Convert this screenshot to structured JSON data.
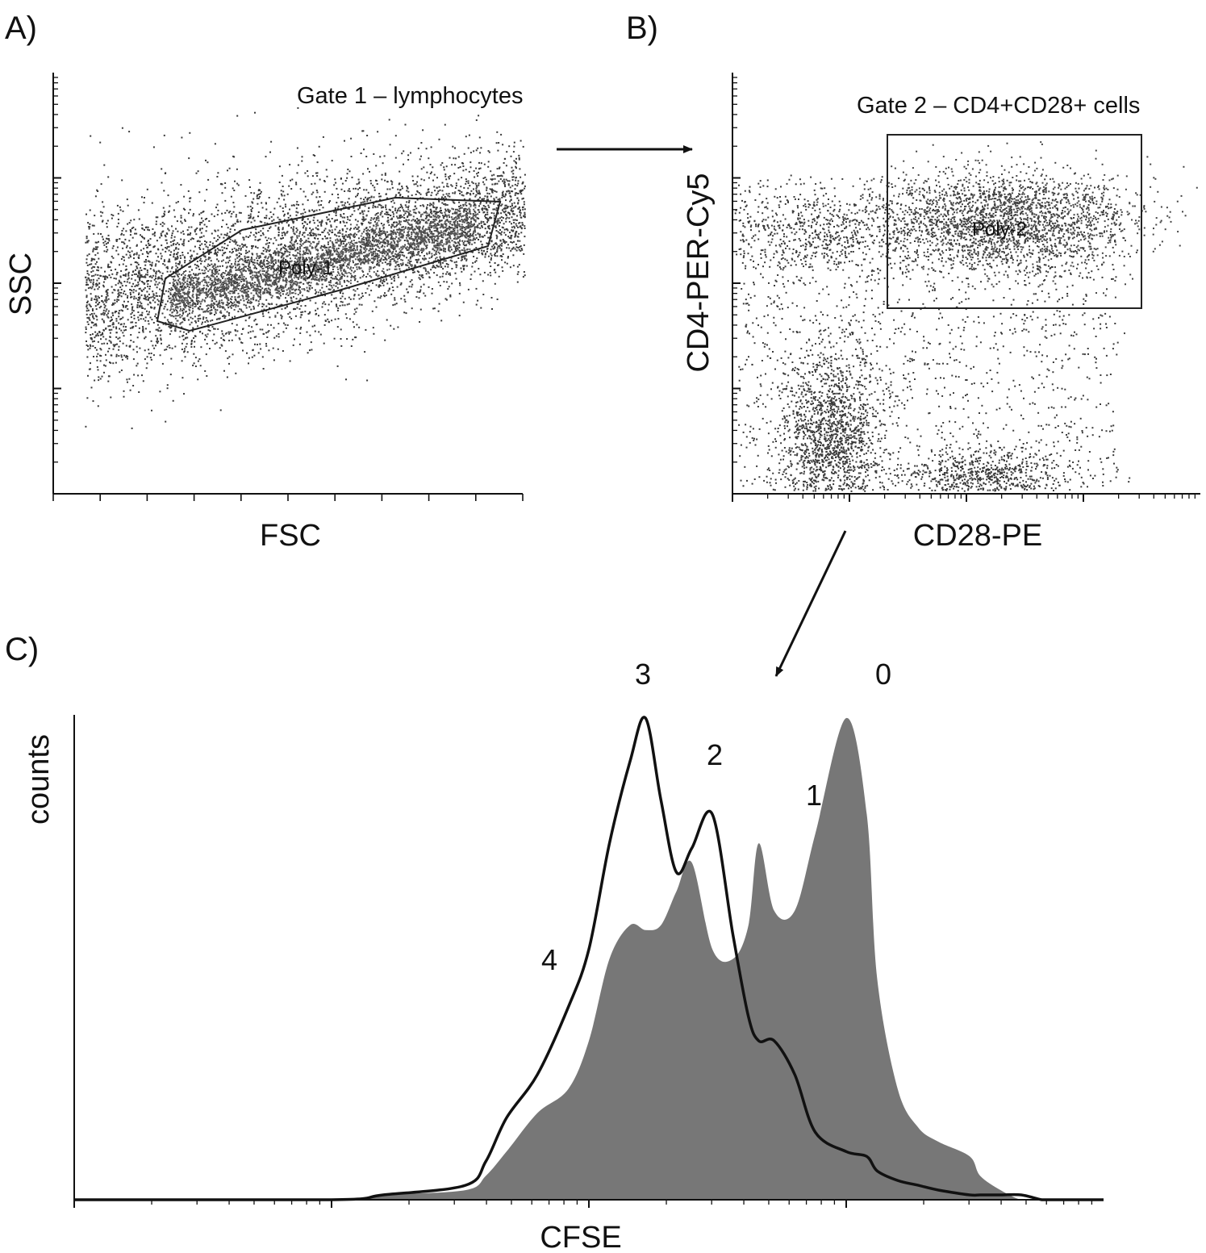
{
  "panels": {
    "a": {
      "letter": "A)",
      "xlabel": "FSC",
      "ylabel": "SSC",
      "gate_title": "Gate 1 – lymphocytes",
      "gate_name": "Poly-1"
    },
    "b": {
      "letter": "B)",
      "xlabel": "CD28-PE",
      "ylabel": "CD4-PER-Cy5",
      "gate_title": "Gate 2 – CD4+CD28+ cells",
      "gate_name": "Poly-2"
    },
    "c": {
      "letter": "C)",
      "xlabel": "CFSE",
      "ylabel": "counts"
    }
  },
  "colors": {
    "dots": "#3a3a3a",
    "filled": "#777777",
    "line": "#111111",
    "axis": "#111111"
  },
  "chart_data": [
    {
      "type": "scatter",
      "panel": "A",
      "xlabel": "FSC",
      "ylabel": "SSC",
      "xscale": "linear",
      "yscale": "log",
      "grid": false,
      "annotation": "Gate 1 – lymphocytes",
      "gate": {
        "name": "Poly-1",
        "shape": "polygon"
      },
      "populations": [
        {
          "x_center": 0.45,
          "y_center": 0.57,
          "description": "lymphocyte cloud"
        }
      ]
    },
    {
      "type": "scatter",
      "panel": "B",
      "xlabel": "CD28-PE",
      "ylabel": "CD4-PER-Cy5",
      "xscale": "log",
      "yscale": "log",
      "grid": false,
      "annotation": "Gate 2 – CD4+CD28+ cells",
      "gate": {
        "name": "Poly-2",
        "shape": "rectangle"
      }
    },
    {
      "type": "area",
      "panel": "C",
      "xlabel": "CFSE",
      "ylabel": "counts",
      "xscale": "log",
      "grid": false,
      "peak_labels": [
        "4",
        "3",
        "2",
        "1",
        "0"
      ],
      "x": [
        0.0,
        0.25,
        0.3,
        0.38,
        0.4,
        0.42,
        0.45,
        0.48,
        0.5,
        0.52,
        0.54,
        0.555,
        0.57,
        0.585,
        0.6,
        0.62,
        0.64,
        0.655,
        0.665,
        0.68,
        0.7,
        0.72,
        0.75,
        0.77,
        0.78,
        0.8,
        0.82,
        0.84,
        0.87,
        0.88,
        0.9,
        0.92,
        0.94,
        0.95,
        0.97,
        1.0
      ],
      "series": [
        {
          "style": "filled",
          "values": [
            0.0,
            0.0,
            0.01,
            0.02,
            0.05,
            0.1,
            0.18,
            0.23,
            0.33,
            0.5,
            0.57,
            0.56,
            0.57,
            0.64,
            0.7,
            0.52,
            0.5,
            0.57,
            0.74,
            0.6,
            0.6,
            0.76,
            1.0,
            0.8,
            0.46,
            0.23,
            0.15,
            0.12,
            0.09,
            0.05,
            0.02,
            0.0,
            0.0,
            0.0,
            0.0,
            0.0
          ]
        },
        {
          "style": "line",
          "values": [
            0.0,
            0.0,
            0.01,
            0.03,
            0.08,
            0.17,
            0.26,
            0.4,
            0.52,
            0.74,
            0.91,
            1.0,
            0.83,
            0.68,
            0.73,
            0.8,
            0.55,
            0.38,
            0.33,
            0.33,
            0.26,
            0.14,
            0.1,
            0.09,
            0.06,
            0.04,
            0.03,
            0.02,
            0.01,
            0.01,
            0.01,
            0.01,
            0.0,
            0.0,
            0.0,
            0.0
          ]
        }
      ]
    }
  ]
}
